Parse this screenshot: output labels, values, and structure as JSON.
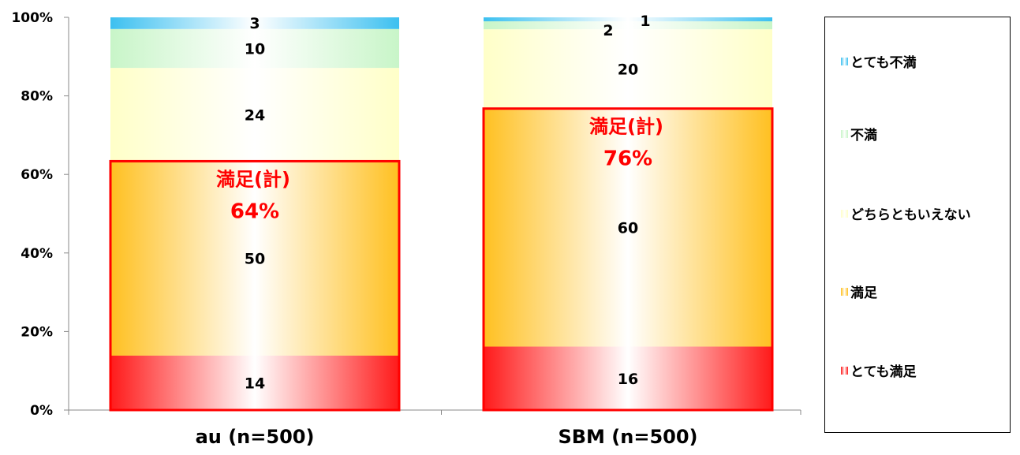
{
  "chart_data": {
    "type": "bar",
    "stacked": true,
    "percent": true,
    "categories": [
      "au (n=500)",
      "SBM (n=500)"
    ],
    "series": [
      {
        "name": "とても満足",
        "values": [
          14,
          16
        ],
        "color": "#ff1a1a"
      },
      {
        "name": "満足",
        "values": [
          50,
          60
        ],
        "color": "#ffc020"
      },
      {
        "name": "どちらともいえない",
        "values": [
          24,
          20
        ],
        "color": "#ffffc8"
      },
      {
        "name": "不満",
        "values": [
          10,
          2
        ],
        "color": "#c8f5c8"
      },
      {
        "name": "とても不満",
        "values": [
          3,
          1
        ],
        "color": "#3cc0f0"
      }
    ],
    "y_ticks": [
      "0%",
      "20%",
      "40%",
      "60%",
      "80%",
      "100%"
    ],
    "ylim": [
      0,
      100
    ],
    "legend_position": "right",
    "highlights": [
      {
        "label": "満足(計)",
        "value": "64%",
        "color": "#ff0000"
      },
      {
        "label": "満足(計)",
        "value": "76%",
        "color": "#ff0000"
      }
    ]
  }
}
